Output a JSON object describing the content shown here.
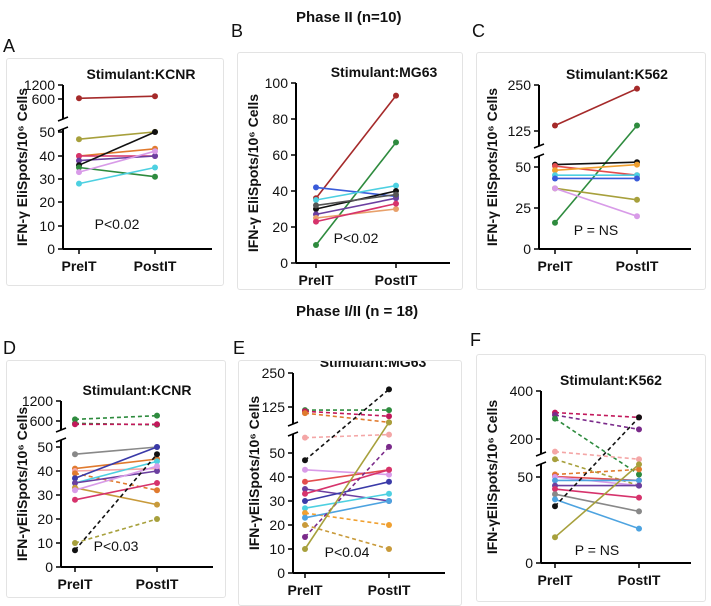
{
  "figure": {
    "phase2_title": "Phase II (n=10)",
    "phase12_title": "Phase I/II (n = 18)",
    "panel_labels": [
      "A",
      "B",
      "C",
      "D",
      "E",
      "F"
    ]
  },
  "chart_data": [
    {
      "type": "line",
      "panel": "A",
      "title": "Stimulant:KCNR",
      "ylabel": "IFN-γ EliSpots/10⁶ Cells",
      "categories": [
        "PreIT",
        "PostIT"
      ],
      "ylim": [
        0,
        1200
      ],
      "yticks": [
        "0",
        "10",
        "20",
        "30",
        "40",
        "50",
        "600",
        "1200"
      ],
      "axis_break": true,
      "pvalue": "P<0.02",
      "series": [
        {
          "values": [
            630,
            720
          ],
          "color": "#a52a2a",
          "dashed": false
        },
        {
          "values": [
            47,
            52
          ],
          "color": "#a7a03c",
          "dashed": false
        },
        {
          "values": [
            40,
            43
          ],
          "color": "#e07a2e",
          "dashed": false
        },
        {
          "values": [
            40,
            40
          ],
          "color": "#d6336c",
          "dashed": false
        },
        {
          "values": [
            38,
            40
          ],
          "color": "#6b3fa0",
          "dashed": false
        },
        {
          "values": [
            36,
            50
          ],
          "color": "#111111",
          "dashed": false
        },
        {
          "values": [
            35,
            31
          ],
          "color": "#2e8b3e",
          "dashed": false
        },
        {
          "values": [
            33,
            42
          ],
          "color": "#d89be8",
          "dashed": false
        },
        {
          "values": [
            28,
            35
          ],
          "color": "#4dd0e1",
          "dashed": false
        }
      ]
    },
    {
      "type": "line",
      "panel": "B",
      "title": "Stimulant:MG63",
      "ylabel": "IFN-γ EliSpots/10⁶ Cells",
      "categories": [
        "PreIT",
        "PostIT"
      ],
      "ylim": [
        0,
        100
      ],
      "yticks": [
        "0",
        "20",
        "40",
        "60",
        "80",
        "100"
      ],
      "axis_break": false,
      "pvalue": "P<0.02",
      "series": [
        {
          "values": [
            36,
            93
          ],
          "color": "#a52a2a",
          "dashed": false
        },
        {
          "values": [
            10,
            67
          ],
          "color": "#2e8b3e",
          "dashed": false
        },
        {
          "values": [
            42,
            37
          ],
          "color": "#3a5bd9",
          "dashed": false
        },
        {
          "values": [
            35,
            43
          ],
          "color": "#4dd0e1",
          "dashed": false
        },
        {
          "values": [
            30,
            40
          ],
          "color": "#111111",
          "dashed": false
        },
        {
          "values": [
            27,
            36
          ],
          "color": "#6b3fa0",
          "dashed": false
        },
        {
          "values": [
            25,
            30
          ],
          "color": "#e8a06a",
          "dashed": false
        },
        {
          "values": [
            23,
            33
          ],
          "color": "#d6336c",
          "dashed": false
        },
        {
          "values": [
            32,
            38
          ],
          "color": "#555555",
          "dashed": false
        }
      ]
    },
    {
      "type": "line",
      "panel": "C",
      "title": "Stimulant:K562",
      "ylabel": "IFN-γ EliSpots/10⁶ Cells",
      "categories": [
        "PreIT",
        "PostIT"
      ],
      "ylim": [
        0,
        250
      ],
      "yticks": [
        "0",
        "25",
        "50",
        "125",
        "250"
      ],
      "axis_break": true,
      "pvalue": "P = NS",
      "series": [
        {
          "values": [
            140,
            240
          ],
          "color": "#a52a2a",
          "dashed": false
        },
        {
          "values": [
            16,
            140
          ],
          "color": "#2e8b3e",
          "dashed": false
        },
        {
          "values": [
            55,
            60
          ],
          "color": "#111111",
          "dashed": false
        },
        {
          "values": [
            52,
            45
          ],
          "color": "#e34d4d",
          "dashed": false
        },
        {
          "values": [
            48,
            55
          ],
          "color": "#f0a030",
          "dashed": false
        },
        {
          "values": [
            45,
            45
          ],
          "color": "#4dd0e1",
          "dashed": false
        },
        {
          "values": [
            43,
            43
          ],
          "color": "#3a5bd9",
          "dashed": false
        },
        {
          "values": [
            37,
            30
          ],
          "color": "#a7a03c",
          "dashed": false
        },
        {
          "values": [
            37,
            20
          ],
          "color": "#d89be8",
          "dashed": false
        }
      ]
    },
    {
      "type": "line",
      "panel": "D",
      "title": "Stimulant:KCNR",
      "ylabel": "IFN-γEliSpots/10⁶ Cells",
      "categories": [
        "PreIT",
        "PostIT"
      ],
      "ylim": [
        0,
        1200
      ],
      "yticks": [
        "0",
        "10",
        "20",
        "30",
        "40",
        "50",
        "600",
        "1200"
      ],
      "axis_break": true,
      "pvalue": "P<0.03",
      "series": [
        {
          "values": [
            650,
            760
          ],
          "color": "#2e8b3e",
          "dashed": true
        },
        {
          "values": [
            550,
            520
          ],
          "color": "#2e8b3e",
          "dashed": true
        },
        {
          "values": [
            530,
            530
          ],
          "color": "#c2185b",
          "dashed": true
        },
        {
          "values": [
            47,
            50
          ],
          "color": "#888888",
          "dashed": false
        },
        {
          "values": [
            41,
            45
          ],
          "color": "#e07a2e",
          "dashed": false
        },
        {
          "values": [
            40,
            41
          ],
          "color": "#f4a6a6",
          "dashed": false
        },
        {
          "values": [
            39,
            32
          ],
          "color": "#e07a2e",
          "dashed": true
        },
        {
          "values": [
            37,
            50
          ],
          "color": "#3a3aa8",
          "dashed": false
        },
        {
          "values": [
            35,
            44
          ],
          "color": "#4dd0e1",
          "dashed": false
        },
        {
          "values": [
            35,
            40
          ],
          "color": "#6b3fa0",
          "dashed": false
        },
        {
          "values": [
            33,
            26
          ],
          "color": "#c89a3a",
          "dashed": false
        },
        {
          "values": [
            32,
            42
          ],
          "color": "#d89be8",
          "dashed": false
        },
        {
          "values": [
            28,
            35
          ],
          "color": "#d6336c",
          "dashed": false
        },
        {
          "values": [
            10,
            20
          ],
          "color": "#a7a03c",
          "dashed": true
        },
        {
          "values": [
            7,
            47
          ],
          "color": "#111111",
          "dashed": true
        }
      ]
    },
    {
      "type": "line",
      "panel": "E",
      "title": "Stimulant:MG63",
      "ylabel": "IFN-γEliSpots/10⁶ Cells",
      "categories": [
        "PreIT",
        "PostIT"
      ],
      "ylim": [
        0,
        250
      ],
      "yticks": [
        "0",
        "10",
        "20",
        "30",
        "40",
        "50",
        "125",
        "250"
      ],
      "axis_break": true,
      "pvalue": "P<0.04",
      "series": [
        {
          "values": [
            120,
            120
          ],
          "color": "#2e8b3e",
          "dashed": true
        },
        {
          "values": [
            118,
            110
          ],
          "color": "#c2185b",
          "dashed": true
        },
        {
          "values": [
            115,
            100
          ],
          "color": "#e07a2e",
          "dashed": true
        },
        {
          "values": [
            75,
            80
          ],
          "color": "#f4a6a6",
          "dashed": true
        },
        {
          "values": [
            47,
            190
          ],
          "color": "#111111",
          "dashed": true
        },
        {
          "values": [
            43,
            41
          ],
          "color": "#d89be8",
          "dashed": false
        },
        {
          "values": [
            38,
            43
          ],
          "color": "#e34d4d",
          "dashed": false
        },
        {
          "values": [
            35,
            30
          ],
          "color": "#6b3fa0",
          "dashed": false
        },
        {
          "values": [
            33,
            43
          ],
          "color": "#d6336c",
          "dashed": false
        },
        {
          "values": [
            30,
            38
          ],
          "color": "#3a3aa8",
          "dashed": false
        },
        {
          "values": [
            27,
            33
          ],
          "color": "#4dd0e1",
          "dashed": false
        },
        {
          "values": [
            25,
            20
          ],
          "color": "#f0a030",
          "dashed": true
        },
        {
          "values": [
            23,
            30
          ],
          "color": "#4da3e0",
          "dashed": false
        },
        {
          "values": [
            20,
            10
          ],
          "color": "#c89a3a",
          "dashed": true
        },
        {
          "values": [
            15,
            60
          ],
          "color": "#7a2a8a",
          "dashed": true
        },
        {
          "values": [
            10,
            100
          ],
          "color": "#a7a03c",
          "dashed": false
        }
      ]
    },
    {
      "type": "line",
      "panel": "F",
      "title": "Stimulant:K562",
      "ylabel": "IFN-γEliSpots/10⁶ Cells",
      "categories": [
        "PreIT",
        "PostIT"
      ],
      "ylim": [
        0,
        400
      ],
      "yticks": [
        "0",
        "50",
        "200",
        "400"
      ],
      "axis_break": true,
      "pvalue": "P = NS",
      "series": [
        {
          "values": [
            310,
            290
          ],
          "color": "#c2185b",
          "dashed": true
        },
        {
          "values": [
            300,
            240
          ],
          "color": "#7a2a8a",
          "dashed": true
        },
        {
          "values": [
            285,
            60
          ],
          "color": "#2e8b3e",
          "dashed": true
        },
        {
          "values": [
            150,
            120
          ],
          "color": "#f4a6a6",
          "dashed": true
        },
        {
          "values": [
            120,
            45
          ],
          "color": "#a7a03c",
          "dashed": true
        },
        {
          "values": [
            60,
            80
          ],
          "color": "#e07a2e",
          "dashed": true
        },
        {
          "values": [
            52,
            48
          ],
          "color": "#e34d4d",
          "dashed": false
        },
        {
          "values": [
            50,
            45
          ],
          "color": "#d89be8",
          "dashed": false
        },
        {
          "values": [
            48,
            48
          ],
          "color": "#4da3e0",
          "dashed": false
        },
        {
          "values": [
            45,
            45
          ],
          "color": "#6b3fa0",
          "dashed": false
        },
        {
          "values": [
            43,
            38
          ],
          "color": "#d6336c",
          "dashed": false
        },
        {
          "values": [
            40,
            30
          ],
          "color": "#888888",
          "dashed": false
        },
        {
          "values": [
            37,
            20
          ],
          "color": "#4da3e0",
          "dashed": false
        },
        {
          "values": [
            33,
            290
          ],
          "color": "#111111",
          "dashed": true
        },
        {
          "values": [
            15,
            100
          ],
          "color": "#a7a03c",
          "dashed": false
        }
      ]
    }
  ]
}
